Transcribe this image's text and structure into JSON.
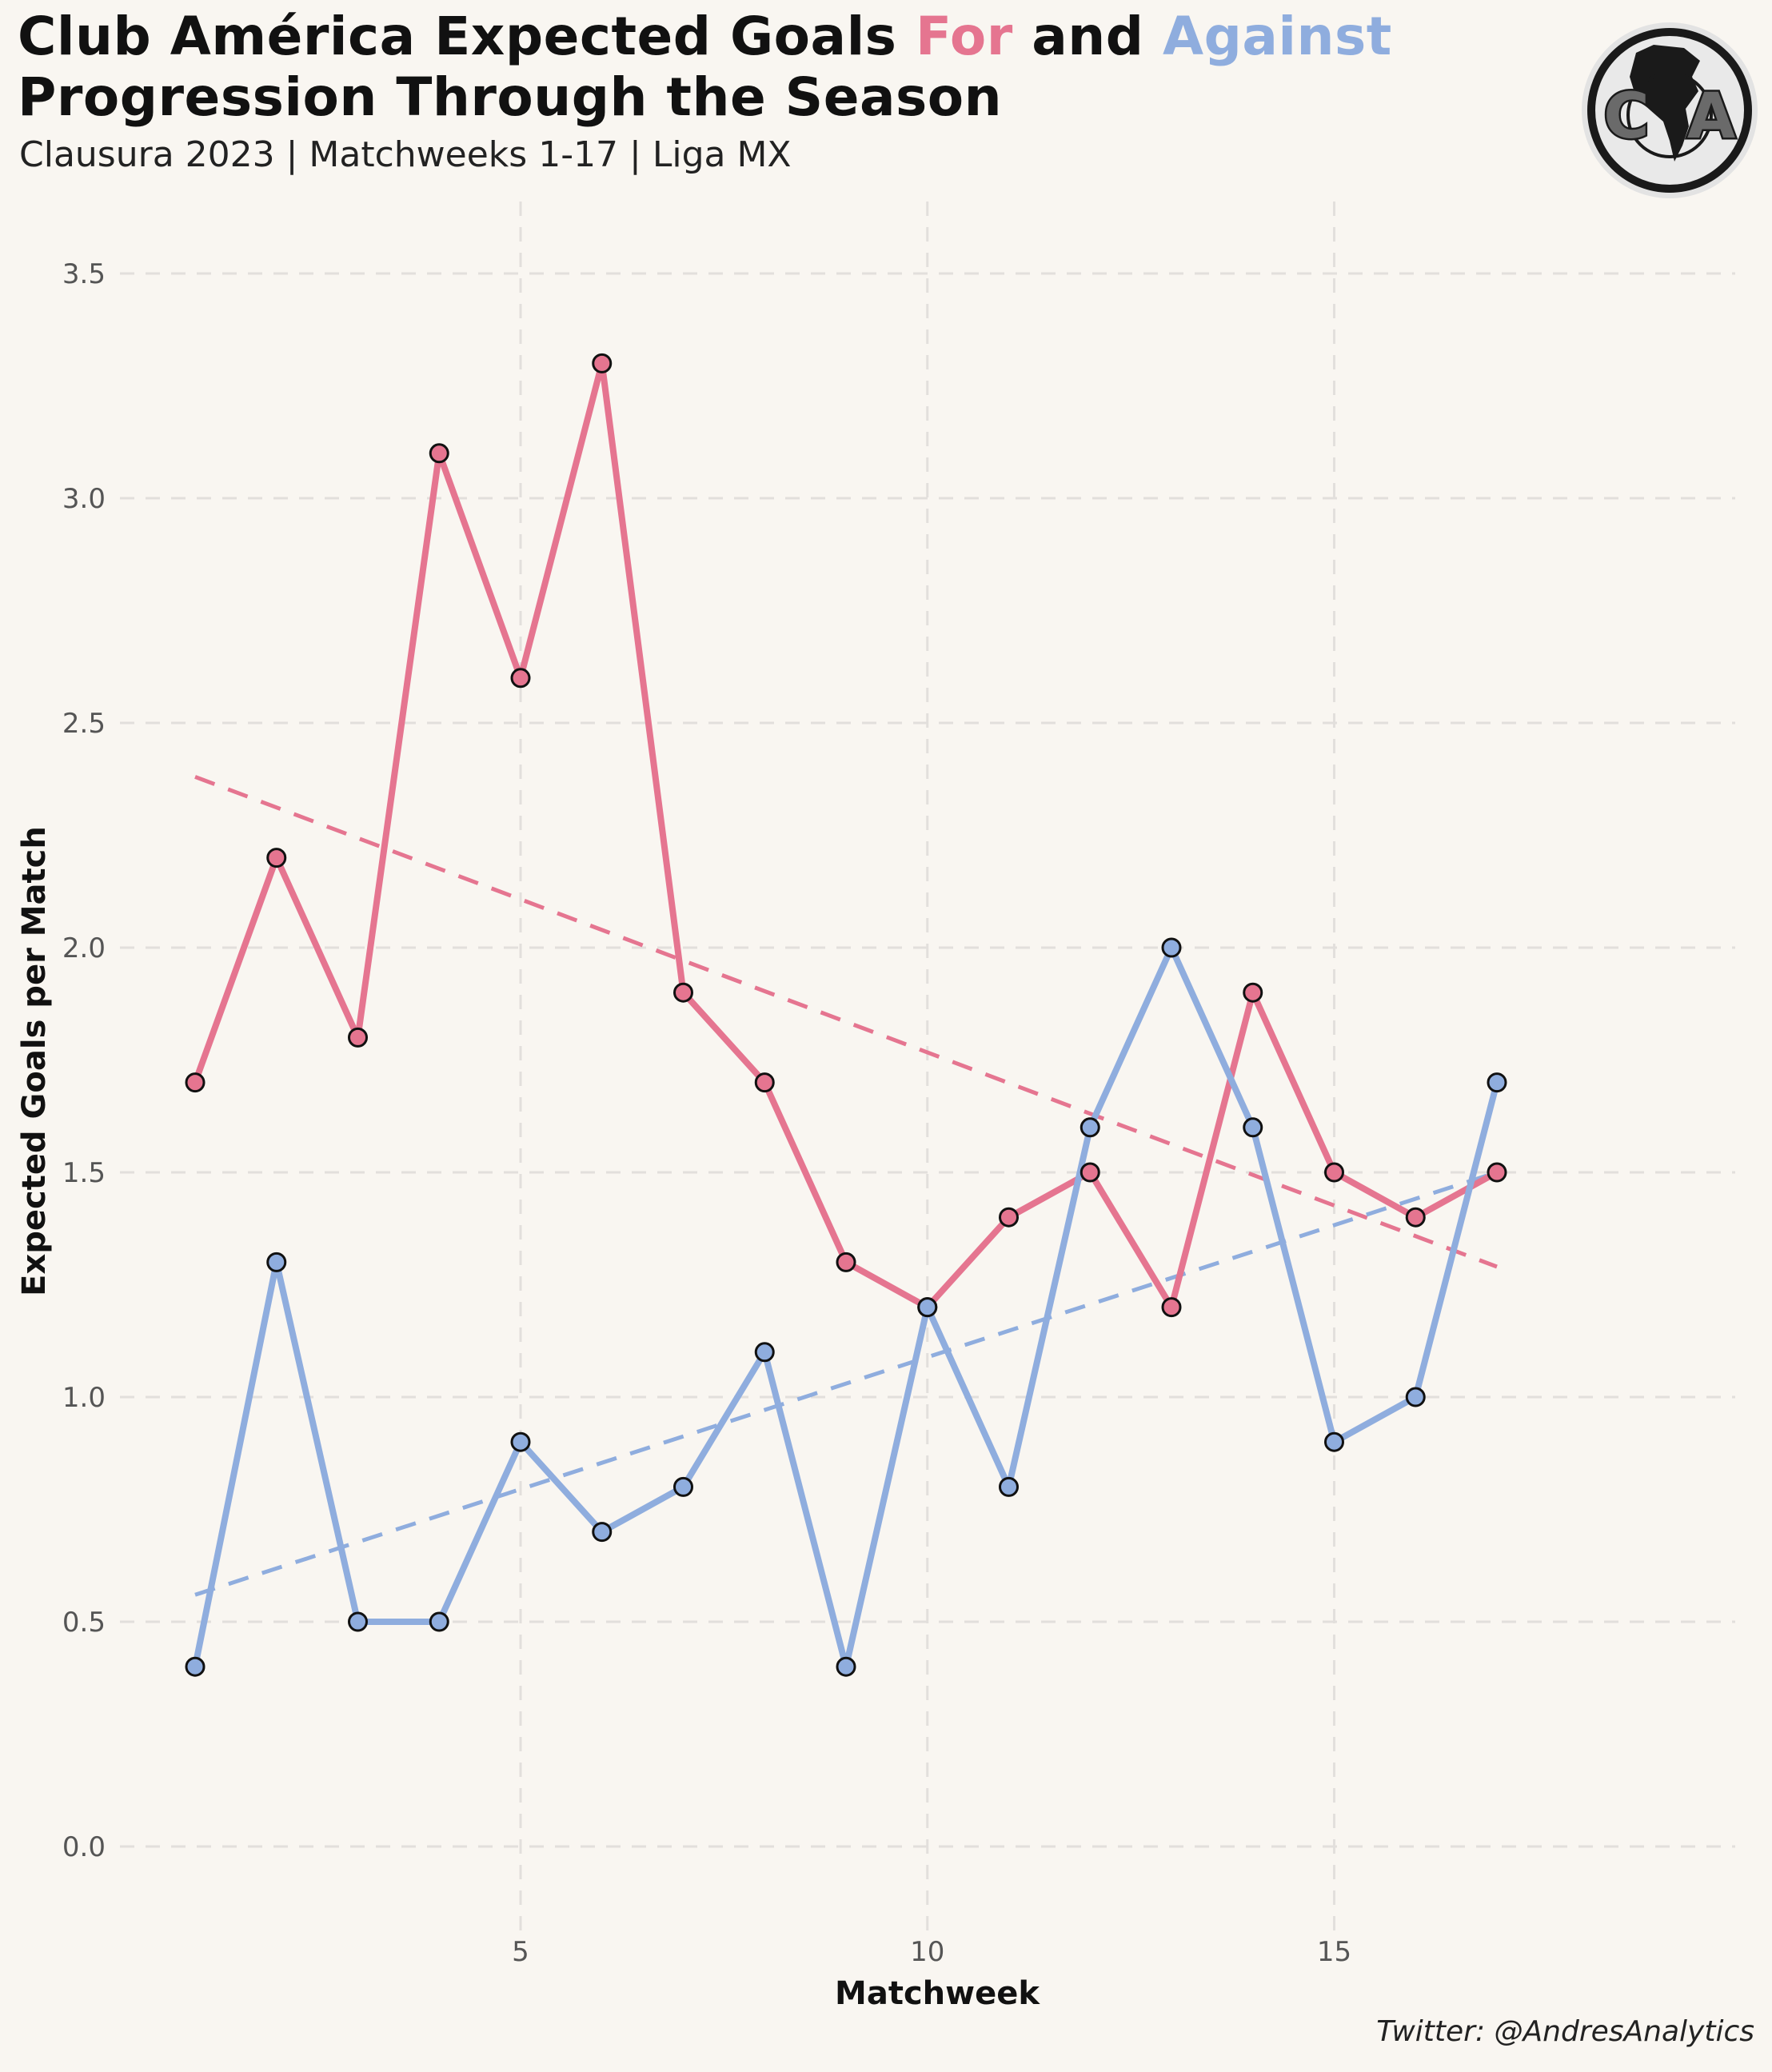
{
  "header": {
    "title_part1": "Club América Expected Goals",
    "title_for": "For",
    "title_and": "and",
    "title_against": "Against",
    "title_line2": "Progression Through the Season",
    "subtitle": "Clausura 2023 | Matchweeks 1-17 | Liga MX"
  },
  "logo": {
    "letter_left": "C",
    "letter_right": "A"
  },
  "caption": "Twitter: @AndresAnalytics",
  "colors": {
    "for": "#e57590",
    "against": "#8fadde",
    "background": "#f9f6f1",
    "grid": "#e2dfdc"
  },
  "chart_data": {
    "type": "line",
    "title": "Club América Expected Goals For and Against Progression Through the Season",
    "xlabel": "Matchweek",
    "ylabel": "Expected Goals per Match",
    "x": [
      1,
      2,
      3,
      4,
      5,
      6,
      7,
      8,
      9,
      10,
      11,
      12,
      13,
      14,
      15,
      16,
      17
    ],
    "xlim": [
      -1,
      18.1
    ],
    "ylim": [
      -0.2,
      3.6
    ],
    "xticks": [
      5,
      10,
      15
    ],
    "yticks": [
      0.0,
      0.5,
      1.0,
      1.5,
      2.0,
      2.5,
      3.0,
      3.5
    ],
    "ytick_labels": [
      "0.0",
      "0.5",
      "1.0",
      "1.5",
      "2.0",
      "2.5",
      "3.0",
      "3.5"
    ],
    "grid": true,
    "series": [
      {
        "name": "For",
        "color": "#e57590",
        "values": [
          1.7,
          2.2,
          1.8,
          3.1,
          2.6,
          3.3,
          1.9,
          1.7,
          1.3,
          1.2,
          1.4,
          1.5,
          1.2,
          1.9,
          1.5,
          1.4,
          1.5
        ],
        "trend": {
          "start": 2.38,
          "end": 1.29
        }
      },
      {
        "name": "Against",
        "color": "#8fadde",
        "values": [
          0.4,
          1.3,
          0.5,
          0.5,
          0.9,
          0.7,
          0.8,
          1.1,
          0.4,
          1.2,
          0.8,
          1.6,
          2.0,
          1.6,
          0.9,
          1.0,
          1.7
        ],
        "trend": {
          "start": 0.56,
          "end": 1.5
        }
      }
    ]
  }
}
